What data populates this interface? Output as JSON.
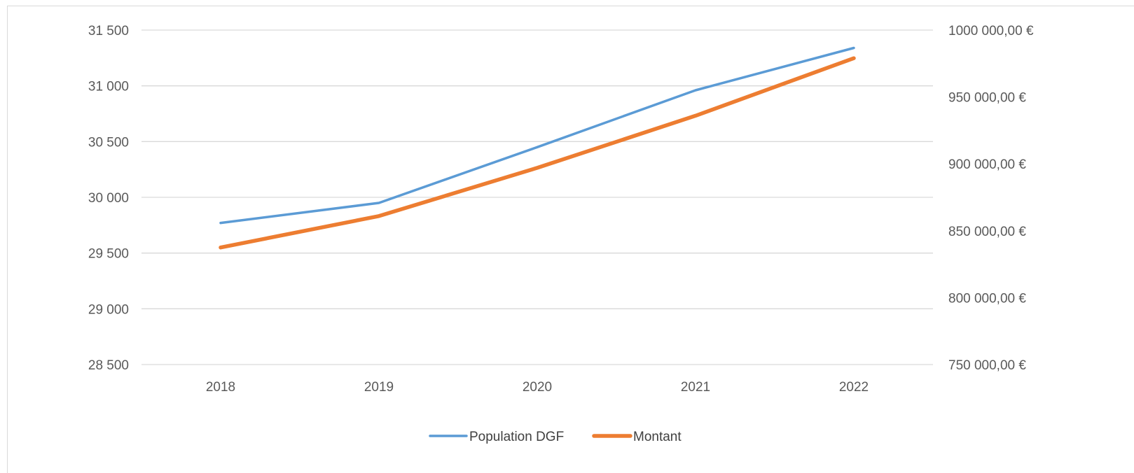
{
  "chart_data": {
    "type": "line",
    "title": "",
    "xlabel": "",
    "ylabel": "",
    "categories": [
      "2018",
      "2019",
      "2020",
      "2021",
      "2022"
    ],
    "y_left": {
      "ylim": [
        28500,
        31500
      ],
      "ticks": [
        28500,
        29000,
        29500,
        30000,
        30500,
        31000,
        31500
      ],
      "tick_labels": [
        "28 500",
        "29 000",
        "29 500",
        "30 000",
        "30 500",
        "31 000",
        "31 500"
      ]
    },
    "y_right": {
      "ylim": [
        750000,
        1000000
      ],
      "ticks": [
        750000,
        800000,
        850000,
        900000,
        950000,
        1000000
      ],
      "tick_labels": [
        "750 000,00 €",
        "800 000,00 €",
        "850 000,00 €",
        "900 000,00 €",
        "950 000,00 €",
        "1000 000,00 €"
      ]
    },
    "series": [
      {
        "name": "Population DGF",
        "axis": "left",
        "color": "#5b9bd5",
        "values": [
          29770,
          29950,
          30450,
          30960,
          31340
        ]
      },
      {
        "name": "Montant",
        "axis": "right",
        "color": "#ed7d31",
        "values": [
          837500,
          861000,
          897000,
          936000,
          979000
        ]
      }
    ],
    "grid": true,
    "legend_position": "bottom"
  }
}
